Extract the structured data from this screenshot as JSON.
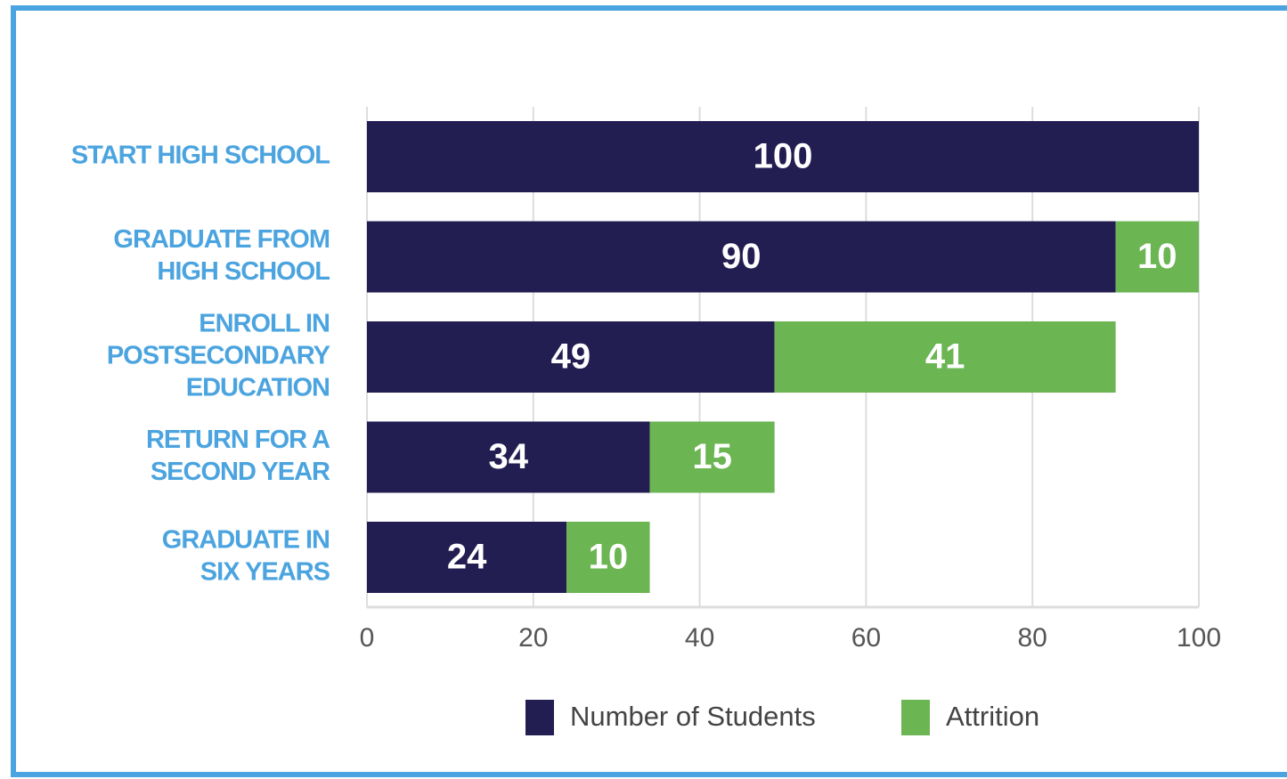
{
  "chart_data": {
    "type": "bar",
    "orientation": "horizontal",
    "stacked": true,
    "categories": [
      [
        "START HIGH SCHOOL"
      ],
      [
        "GRADUATE FROM",
        "HIGH SCHOOL"
      ],
      [
        "ENROLL IN",
        "POSTSECONDARY",
        "EDUCATION"
      ],
      [
        "RETURN FOR A",
        "SECOND YEAR"
      ],
      [
        "GRADUATE IN",
        "SIX YEARS"
      ]
    ],
    "series": [
      {
        "name": "Number of Students",
        "color": "#231e52",
        "values": [
          100,
          90,
          49,
          34,
          24
        ]
      },
      {
        "name": "Attrition",
        "color": "#6bb552",
        "values": [
          null,
          10,
          41,
          15,
          10
        ]
      }
    ],
    "xlim": [
      0,
      100
    ],
    "xticks": [
      0,
      20,
      40,
      60,
      80,
      100
    ],
    "grid": true,
    "legend": "bottom"
  }
}
